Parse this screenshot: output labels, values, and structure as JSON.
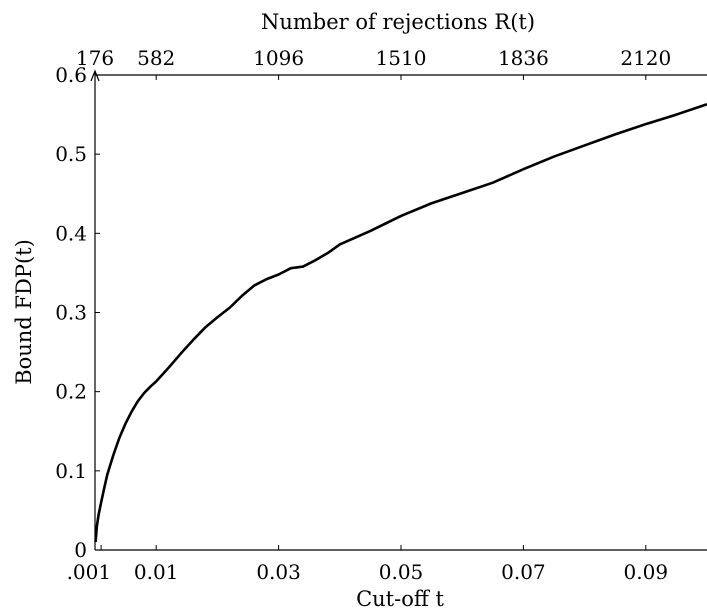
{
  "chart_data": {
    "type": "line",
    "title": "",
    "xlabel": "Cut-off t",
    "ylabel": "Bound FDP(t)",
    "top_xlabel": "Number of rejections R(t)",
    "xlim": [
      0,
      0.1
    ],
    "ylim": [
      0,
      0.6
    ],
    "grid": false,
    "bottom_ticks": [
      {
        "value": 0.001,
        "label": ".001"
      },
      {
        "value": 0.01,
        "label": "0.01"
      },
      {
        "value": 0.03,
        "label": "0.03"
      },
      {
        "value": 0.05,
        "label": "0.05"
      },
      {
        "value": 0.07,
        "label": "0.07"
      },
      {
        "value": 0.09,
        "label": "0.09"
      }
    ],
    "top_ticks": [
      {
        "value": 0.0,
        "label": "176"
      },
      {
        "value": 0.01,
        "label": "582"
      },
      {
        "value": 0.03,
        "label": "1096"
      },
      {
        "value": 0.05,
        "label": "1510"
      },
      {
        "value": 0.07,
        "label": "1836"
      },
      {
        "value": 0.09,
        "label": "2120"
      }
    ],
    "y_ticks": [
      {
        "value": 0,
        "label": "0"
      },
      {
        "value": 0.1,
        "label": "0.1"
      },
      {
        "value": 0.2,
        "label": "0.2"
      },
      {
        "value": 0.3,
        "label": "0.3"
      },
      {
        "value": 0.4,
        "label": "0.4"
      },
      {
        "value": 0.5,
        "label": "0.5"
      },
      {
        "value": 0.6,
        "label": "0.6"
      }
    ],
    "series": [
      {
        "x": [
          0.0001,
          0.0003,
          0.0006,
          0.001,
          0.0015,
          0.002,
          0.003,
          0.004,
          0.005,
          0.006,
          0.007,
          0.008,
          0.009,
          0.01,
          0.012,
          0.014,
          0.016,
          0.018,
          0.02,
          0.022,
          0.024,
          0.026,
          0.028,
          0.03,
          0.032,
          0.034,
          0.036,
          0.038,
          0.04,
          0.045,
          0.05,
          0.055,
          0.06,
          0.065,
          0.07,
          0.075,
          0.08,
          0.085,
          0.09,
          0.095,
          0.1
        ],
        "y": [
          0.01,
          0.03,
          0.045,
          0.06,
          0.078,
          0.095,
          0.12,
          0.142,
          0.16,
          0.175,
          0.188,
          0.198,
          0.206,
          0.213,
          0.23,
          0.248,
          0.265,
          0.281,
          0.294,
          0.306,
          0.321,
          0.334,
          0.342,
          0.348,
          0.356,
          0.358,
          0.366,
          0.375,
          0.386,
          0.403,
          0.422,
          0.438,
          0.451,
          0.464,
          0.481,
          0.497,
          0.511,
          0.525,
          0.538,
          0.55,
          0.563
        ]
      }
    ]
  }
}
